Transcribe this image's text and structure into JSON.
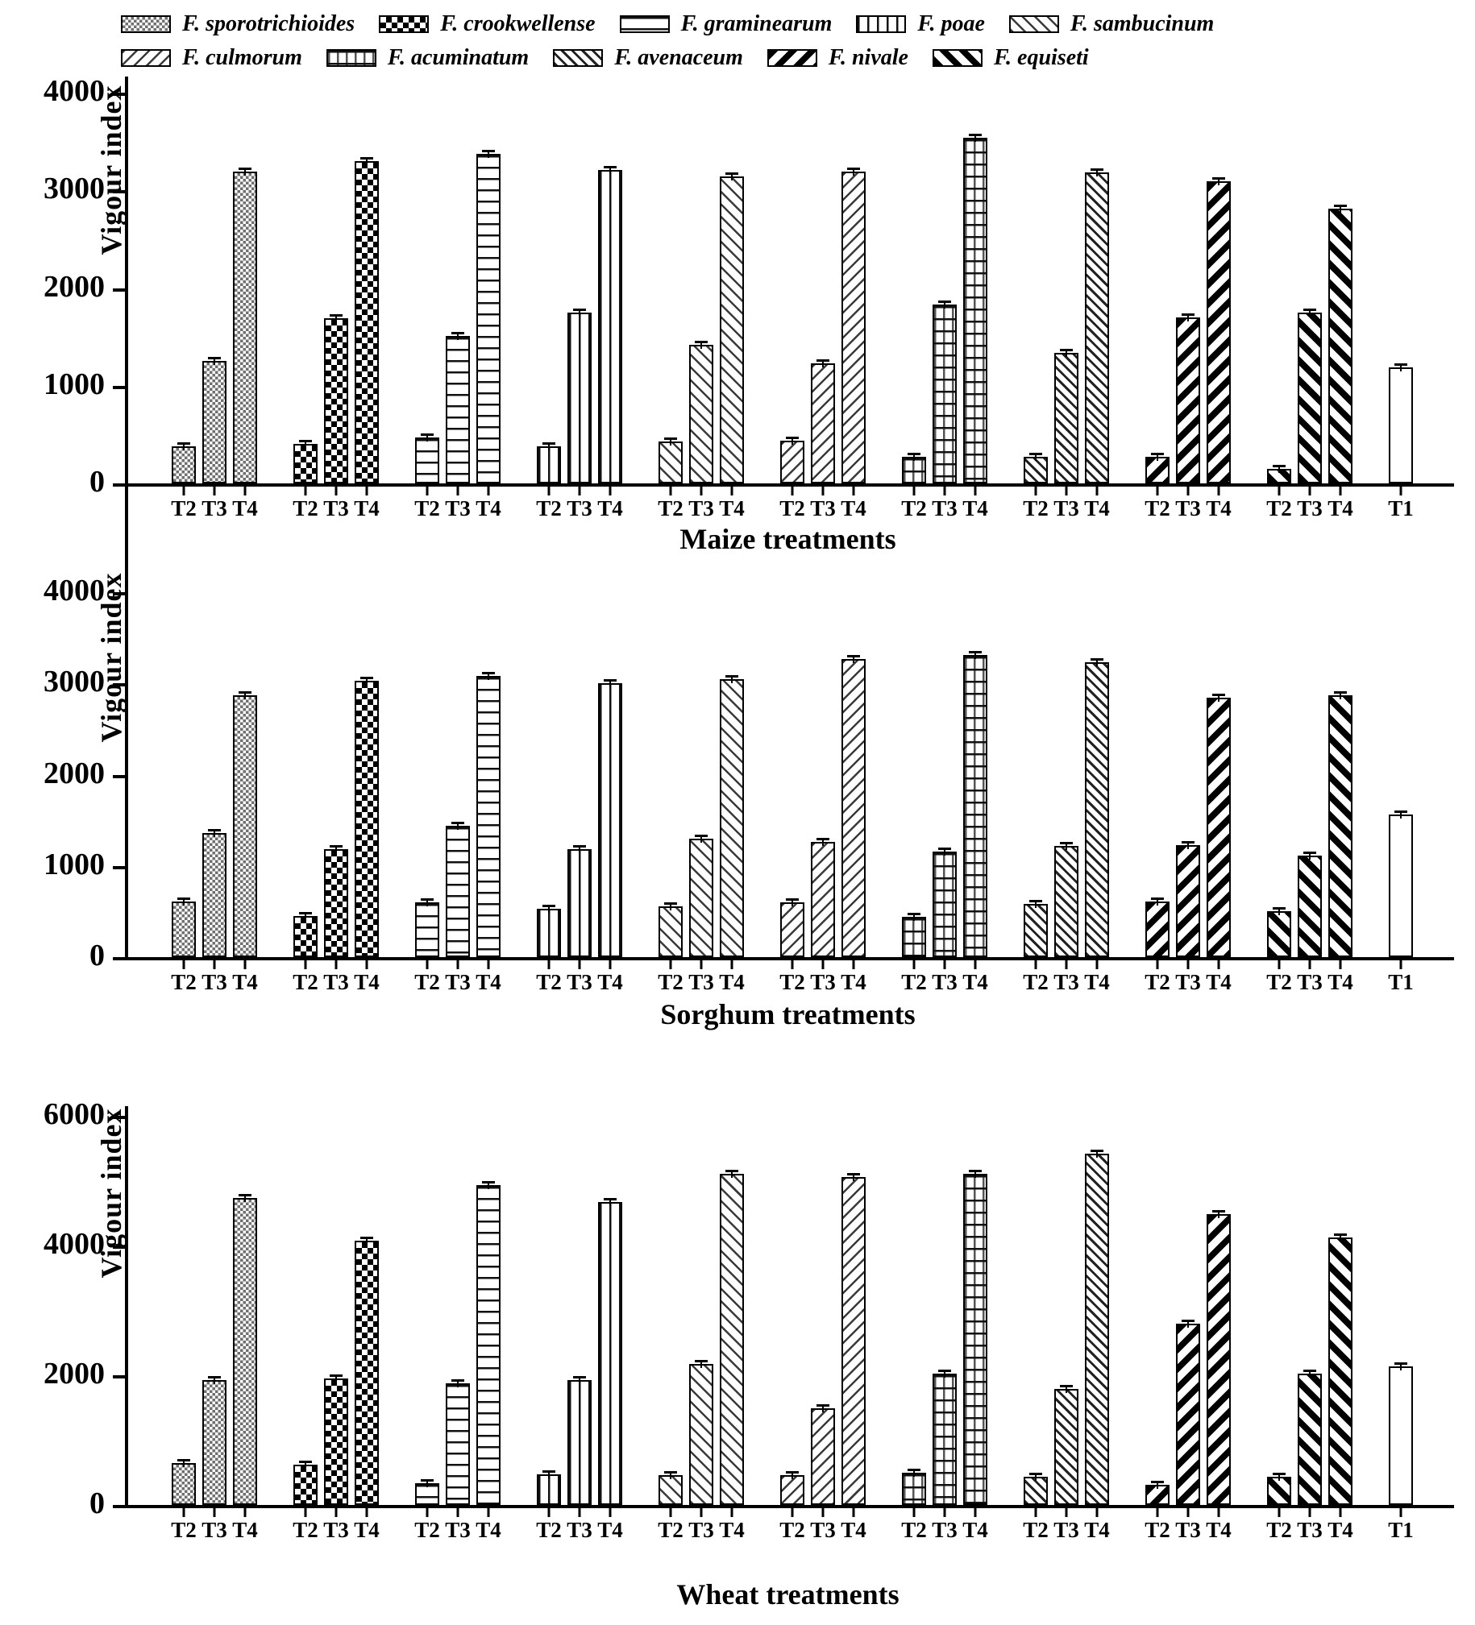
{
  "legend": {
    "items": [
      {
        "label": "F. sporotrichioides",
        "pattern": "checker-fine"
      },
      {
        "label": "F. crookwellense",
        "pattern": "checker-coarse"
      },
      {
        "label": "F. graminearum",
        "pattern": "hlines"
      },
      {
        "label": "F. poae",
        "pattern": "vlines"
      },
      {
        "label": "F. sambucinum",
        "pattern": "diag-f"
      },
      {
        "label": "F. culmorum",
        "pattern": "diag-b"
      },
      {
        "label": "F. acuminatum",
        "pattern": "grid"
      },
      {
        "label": "F. avenaceum",
        "pattern": "diag-f2"
      },
      {
        "label": "F. nivale",
        "pattern": "thick-b"
      },
      {
        "label": "F. equiseti",
        "pattern": "thick-f"
      }
    ],
    "rows": [
      5,
      5
    ]
  },
  "chart_data": [
    {
      "type": "bar",
      "title": "Maize treatments",
      "ylabel": "Vigour index",
      "ylim": [
        0,
        4000
      ],
      "yticks": [
        0,
        1000,
        2000,
        3000,
        4000
      ],
      "grid": false,
      "legend_position": "top",
      "group_tick_labels": [
        "T2",
        "T3",
        "T4"
      ],
      "categories": [
        "F. sporotrichioides",
        "F. crookwellense",
        "F. graminearum",
        "F. poae",
        "F. sambucinum",
        "F. culmorum",
        "F. acuminatum",
        "F. avenaceum",
        "F. nivale",
        "F. equiseti"
      ],
      "series": [
        {
          "name": "T2",
          "values": [
            380,
            400,
            470,
            380,
            430,
            440,
            270,
            270,
            270,
            150
          ]
        },
        {
          "name": "T3",
          "values": [
            1250,
            1690,
            1510,
            1750,
            1420,
            1230,
            1830,
            1340,
            1700,
            1750
          ]
        },
        {
          "name": "T4",
          "values": [
            3190,
            3300,
            3370,
            3210,
            3140,
            3190,
            3540,
            3180,
            3090,
            2810
          ]
        }
      ],
      "control": {
        "label": "T1",
        "value": 1190,
        "pattern": "plain"
      },
      "error_bars": true
    },
    {
      "type": "bar",
      "title": "Sorghum treatments",
      "ylabel": "Vigour index",
      "ylim": [
        0,
        4000
      ],
      "yticks": [
        0,
        1000,
        2000,
        3000,
        4000
      ],
      "grid": false,
      "legend_position": "none",
      "group_tick_labels": [
        "T2",
        "T3",
        "T4"
      ],
      "categories": [
        "F. sporotrichioides",
        "F. crookwellense",
        "F. graminearum",
        "F. poae",
        "F. sambucinum",
        "F. culmorum",
        "F. acuminatum",
        "F. avenaceum",
        "F. nivale",
        "F. equiseti"
      ],
      "series": [
        {
          "name": "T2",
          "values": [
            610,
            450,
            600,
            530,
            560,
            600,
            440,
            580,
            610,
            500
          ]
        },
        {
          "name": "T3",
          "values": [
            1360,
            1180,
            1440,
            1180,
            1300,
            1260,
            1160,
            1220,
            1230,
            1110
          ]
        },
        {
          "name": "T4",
          "values": [
            2870,
            3030,
            3080,
            3000,
            3050,
            3270,
            3310,
            3230,
            2840,
            2870
          ]
        }
      ],
      "control": {
        "label": "T1",
        "value": 1560,
        "pattern": "plain"
      },
      "error_bars": true
    },
    {
      "type": "bar",
      "title": "Wheat treatments",
      "ylabel": "Vigour index",
      "ylim": [
        0,
        6000
      ],
      "yticks": [
        0,
        2000,
        4000,
        6000
      ],
      "grid": false,
      "legend_position": "none",
      "group_tick_labels": [
        "T2",
        "T3",
        "T4"
      ],
      "categories": [
        "F. sporotrichioides",
        "F. crookwellense",
        "F. graminearum",
        "F. poae",
        "F. sambucinum",
        "F. culmorum",
        "F. acuminatum",
        "F. avenaceum",
        "F. nivale",
        "F. equiseti"
      ],
      "series": [
        {
          "name": "T2",
          "values": [
            650,
            620,
            330,
            470,
            460,
            460,
            500,
            430,
            310,
            440
          ]
        },
        {
          "name": "T3",
          "values": [
            1930,
            1950,
            1870,
            1930,
            2170,
            1490,
            2030,
            1790,
            2790,
            2030
          ]
        },
        {
          "name": "T4",
          "values": [
            4730,
            4080,
            4930,
            4670,
            5100,
            5060,
            5100,
            5420,
            4480,
            4130
          ]
        }
      ],
      "control": {
        "label": "T1",
        "value": 2140,
        "pattern": "plain"
      },
      "error_bars": true
    }
  ],
  "colors": {
    "foreground": "#000000",
    "background": "#ffffff",
    "fine_hatch_gray": "#6f6f6f"
  }
}
